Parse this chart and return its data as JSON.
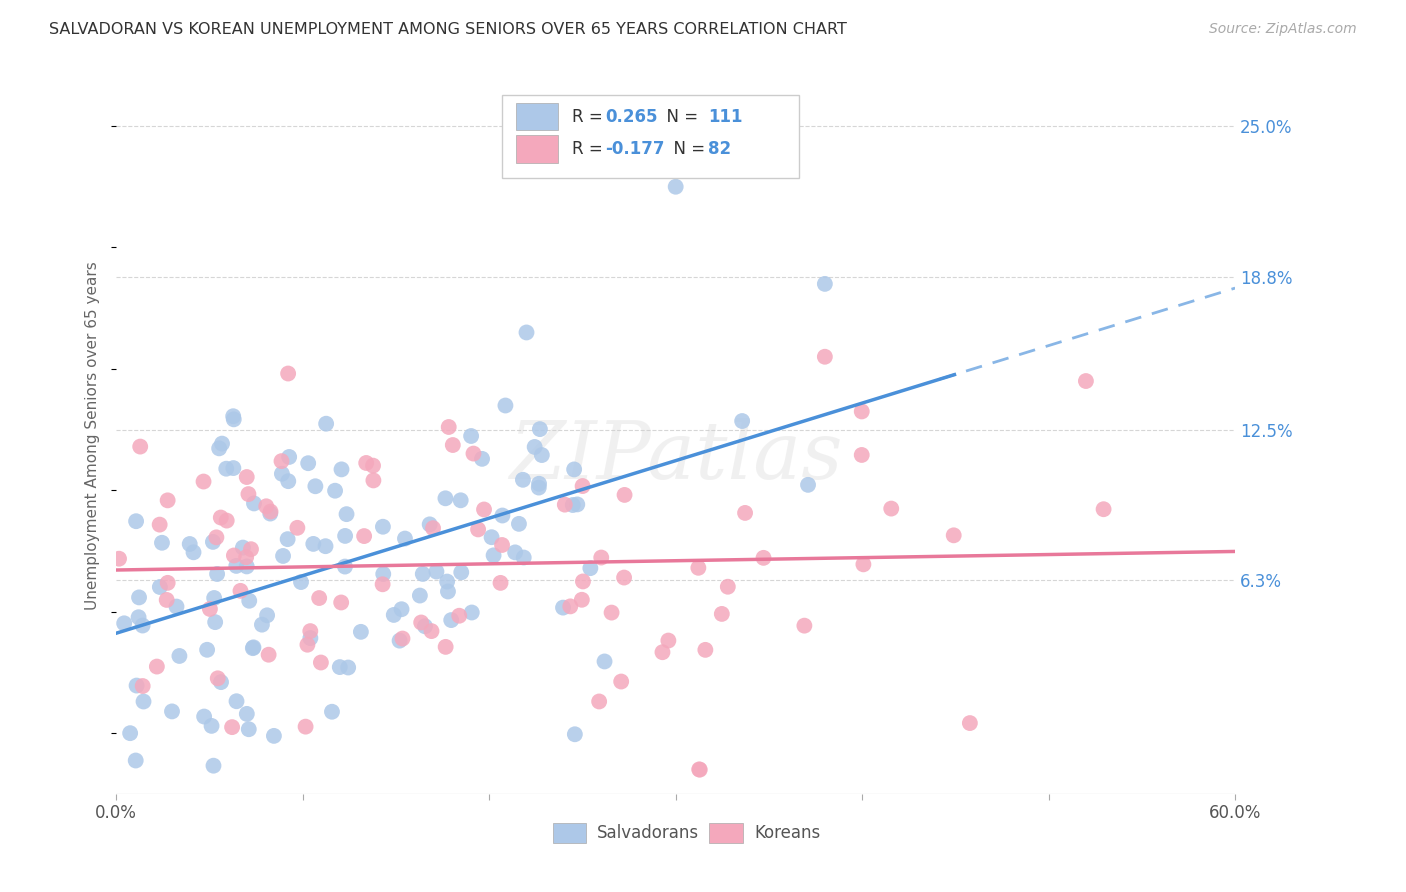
{
  "title": "SALVADORAN VS KOREAN UNEMPLOYMENT AMONG SENIORS OVER 65 YEARS CORRELATION CHART",
  "source": "Source: ZipAtlas.com",
  "ylabel": "Unemployment Among Seniors over 65 years",
  "xlim": [
    0.0,
    0.6
  ],
  "ylim": [
    -0.025,
    0.27
  ],
  "ytick_vals_right": [
    0.063,
    0.125,
    0.188,
    0.25
  ],
  "ytick_labels_right": [
    "6.3%",
    "12.5%",
    "18.8%",
    "25.0%"
  ],
  "salvadoran_R": 0.265,
  "salvadoran_N": 111,
  "korean_R": -0.177,
  "korean_N": 82,
  "color_salvadoran": "#adc8e8",
  "color_korean": "#f4a8bc",
  "color_salvadoran_line": "#4a90d9",
  "color_korean_line": "#e8789a",
  "background_color": "#ffffff",
  "watermark": "ZIPatlas",
  "grid_color": "#cccccc",
  "grid_linestyle": "--"
}
